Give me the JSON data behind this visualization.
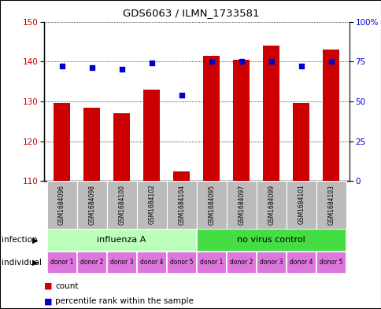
{
  "title": "GDS6063 / ILMN_1733581",
  "samples": [
    "GSM1684096",
    "GSM1684098",
    "GSM1684100",
    "GSM1684102",
    "GSM1684104",
    "GSM1684095",
    "GSM1684097",
    "GSM1684099",
    "GSM1684101",
    "GSM1684103"
  ],
  "bar_values": [
    129.5,
    128.5,
    127.0,
    133.0,
    112.5,
    141.5,
    140.5,
    144.0,
    129.5,
    143.0
  ],
  "dot_values": [
    72,
    71,
    70,
    74,
    54,
    75,
    75,
    75,
    72,
    75
  ],
  "ymin": 110,
  "ymax": 150,
  "yticks_left": [
    110,
    120,
    130,
    140,
    150
  ],
  "yticks_right": [
    0,
    25,
    50,
    75,
    100
  ],
  "bar_color": "#cc0000",
  "dot_color": "#0000cc",
  "infection_groups": [
    {
      "label": "influenza A",
      "start": 0,
      "end": 5,
      "color": "#bbffbb"
    },
    {
      "label": "no virus control",
      "start": 5,
      "end": 10,
      "color": "#44dd44"
    }
  ],
  "individual_labels": [
    "donor 1",
    "donor 2",
    "donor 3",
    "donor 4",
    "donor 5",
    "donor 1",
    "donor 2",
    "donor 3",
    "donor 4",
    "donor 5"
  ],
  "individual_color": "#dd77dd",
  "sample_bg_color": "#bbbbbb",
  "legend_count_color": "#cc0000",
  "legend_dot_color": "#0000cc",
  "infection_label": "infection",
  "individual_label": "individual",
  "plot_bg": "#ffffff"
}
